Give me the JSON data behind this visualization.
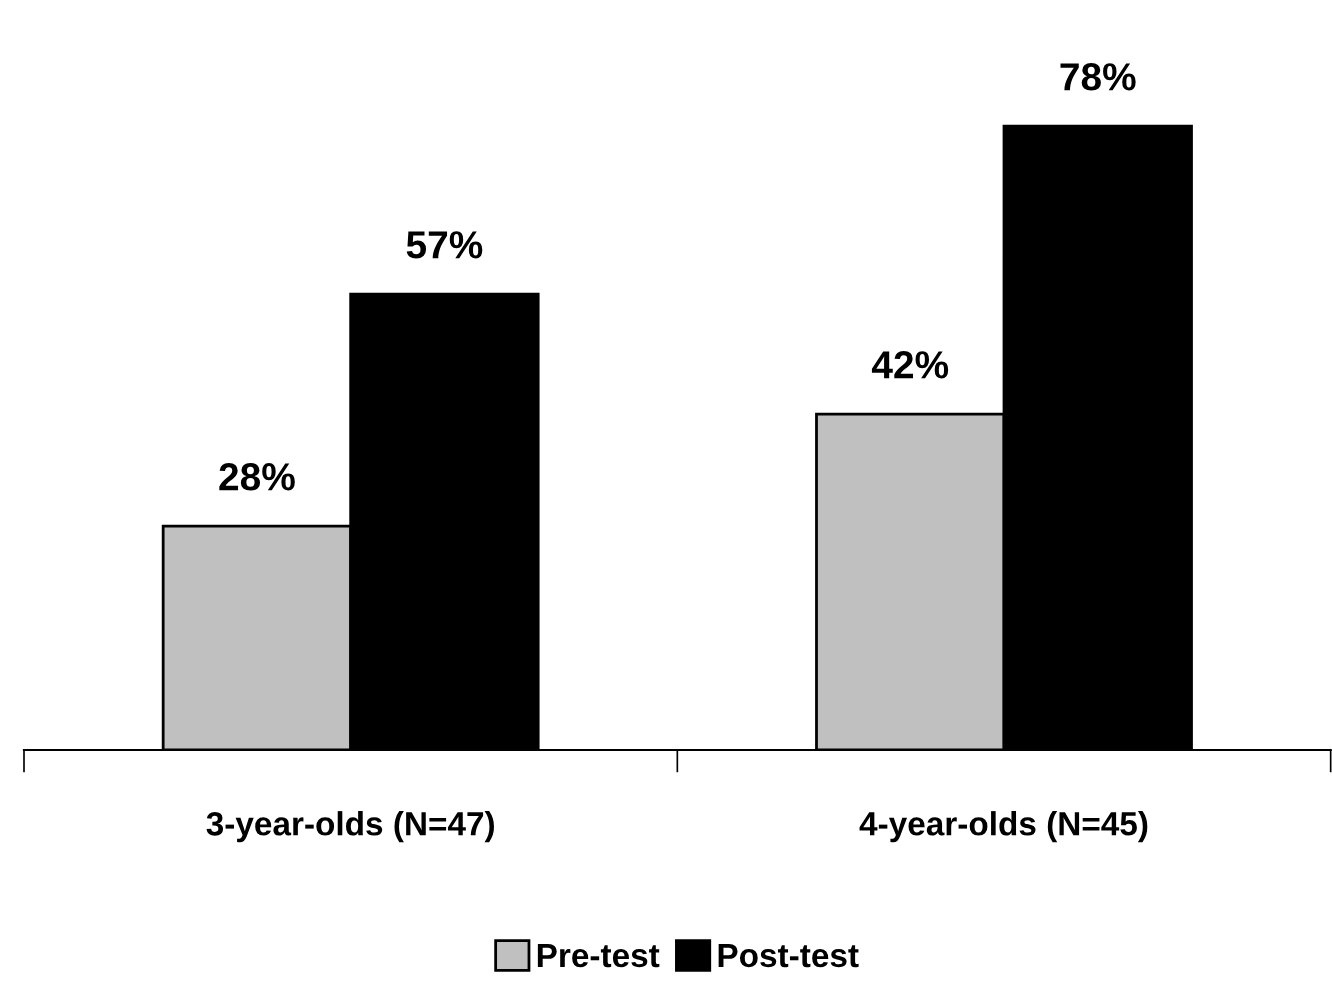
{
  "chart_data": {
    "type": "bar",
    "categories": [
      "3-year-olds (N=47)",
      "4-year-olds (N=45)"
    ],
    "series": [
      {
        "name": "Pre-test",
        "color": "#c0c0c0",
        "values": [
          28,
          42
        ],
        "value_labels": [
          "28%",
          "42%"
        ]
      },
      {
        "name": "Post-test",
        "color": "#000000",
        "values": [
          57,
          78
        ],
        "value_labels": [
          "57%",
          "78%"
        ]
      }
    ],
    "legend": "bottom",
    "grid": false
  }
}
